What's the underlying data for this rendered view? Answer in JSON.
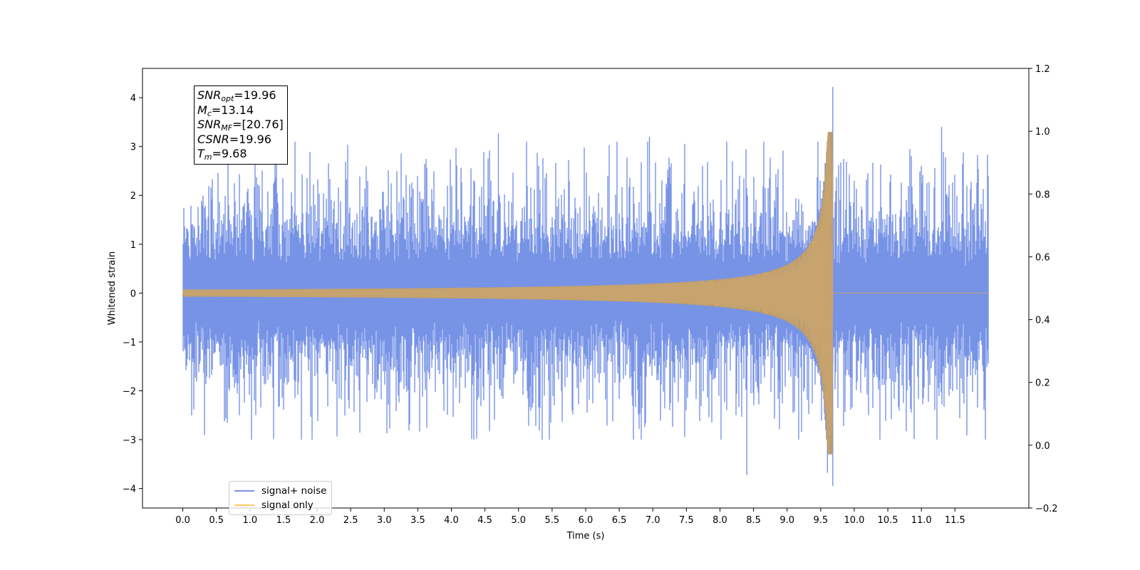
{
  "chart_data": {
    "type": "line",
    "title": "",
    "xlabel": "Time (s)",
    "ylabel": "Whitened strain",
    "xlim": [
      -0.6,
      12.6
    ],
    "ylim": [
      -4.4,
      4.6
    ],
    "y2lim": [
      -0.2,
      1.2
    ],
    "xticks": [
      0.0,
      0.5,
      1.0,
      1.5,
      2.0,
      2.5,
      3.0,
      3.5,
      4.0,
      4.5,
      5.0,
      5.5,
      6.0,
      6.5,
      7.0,
      7.5,
      8.0,
      8.5,
      9.0,
      9.5,
      10.0,
      10.5,
      11.0,
      11.5
    ],
    "xtick_labels": [
      "0.0",
      "0.5",
      "1.0",
      "1.5",
      "2.0",
      "2.5",
      "3.0",
      "3.5",
      "4.0",
      "4.5",
      "5.0",
      "5.5",
      "6.0",
      "6.5",
      "7.0",
      "7.5",
      "8.0",
      "8.5",
      "9.0",
      "9.5",
      "10.0",
      "10.5",
      "11.0",
      "11.5"
    ],
    "yticks": [
      -4,
      -3,
      -2,
      -1,
      0,
      1,
      2,
      3,
      4
    ],
    "ytick_labels": [
      "−4",
      "−3",
      "−2",
      "−1",
      "0",
      "1",
      "2",
      "3",
      "4"
    ],
    "y2ticks": [
      -0.2,
      0.0,
      0.2,
      0.4,
      0.6,
      0.8,
      1.0,
      1.2
    ],
    "y2tick_labels": [
      "−0.2",
      "0.0",
      "0.2",
      "0.4",
      "0.6",
      "0.8",
      "1.0",
      "1.2"
    ],
    "grid": false,
    "legend_position": "lower-left",
    "series": [
      {
        "name": "signal+ noise",
        "color": "#7793e6",
        "description_points": {
          "t_range": [
            0.0,
            12.0
          ],
          "noise_envelope_typical": [
            -2.0,
            2.1
          ],
          "extremes": [
            {
              "t": 9.68,
              "y": 4.22
            },
            {
              "t": 9.68,
              "y": -3.95
            },
            {
              "t": 8.4,
              "y": -3.72
            },
            {
              "t": 9.6,
              "y": -3.68
            },
            {
              "t": 11.3,
              "y": 3.4
            },
            {
              "t": 4.7,
              "y": 3.27
            },
            {
              "t": 6.95,
              "y": 3.2
            }
          ]
        }
      },
      {
        "name": "signal only",
        "color": "#ffc864",
        "description_points": {
          "t_range": [
            0.0,
            12.0
          ],
          "chirp_merger_time": 9.68,
          "peak_amplitude": 3.3,
          "post_merger_value": 0.0
        }
      }
    ]
  },
  "info_box": {
    "snr_opt": {
      "symbol": "SNR",
      "sub": "opt",
      "value": "=19.96"
    },
    "mc": {
      "symbol": "M",
      "sub": "c",
      "value": "=13.14"
    },
    "snr_mf": {
      "symbol": "SNR",
      "sub": "MF",
      "value": "=[20.76]"
    },
    "csnr": {
      "symbol": "CSNR",
      "value": "=19.96"
    },
    "tm": {
      "symbol": "T",
      "sub": "m",
      "value": "=9.68"
    }
  },
  "legend": {
    "items": [
      {
        "label": "signal+ noise",
        "color": "#7793e6"
      },
      {
        "label": "signal only",
        "color": "#ffc864"
      }
    ]
  }
}
